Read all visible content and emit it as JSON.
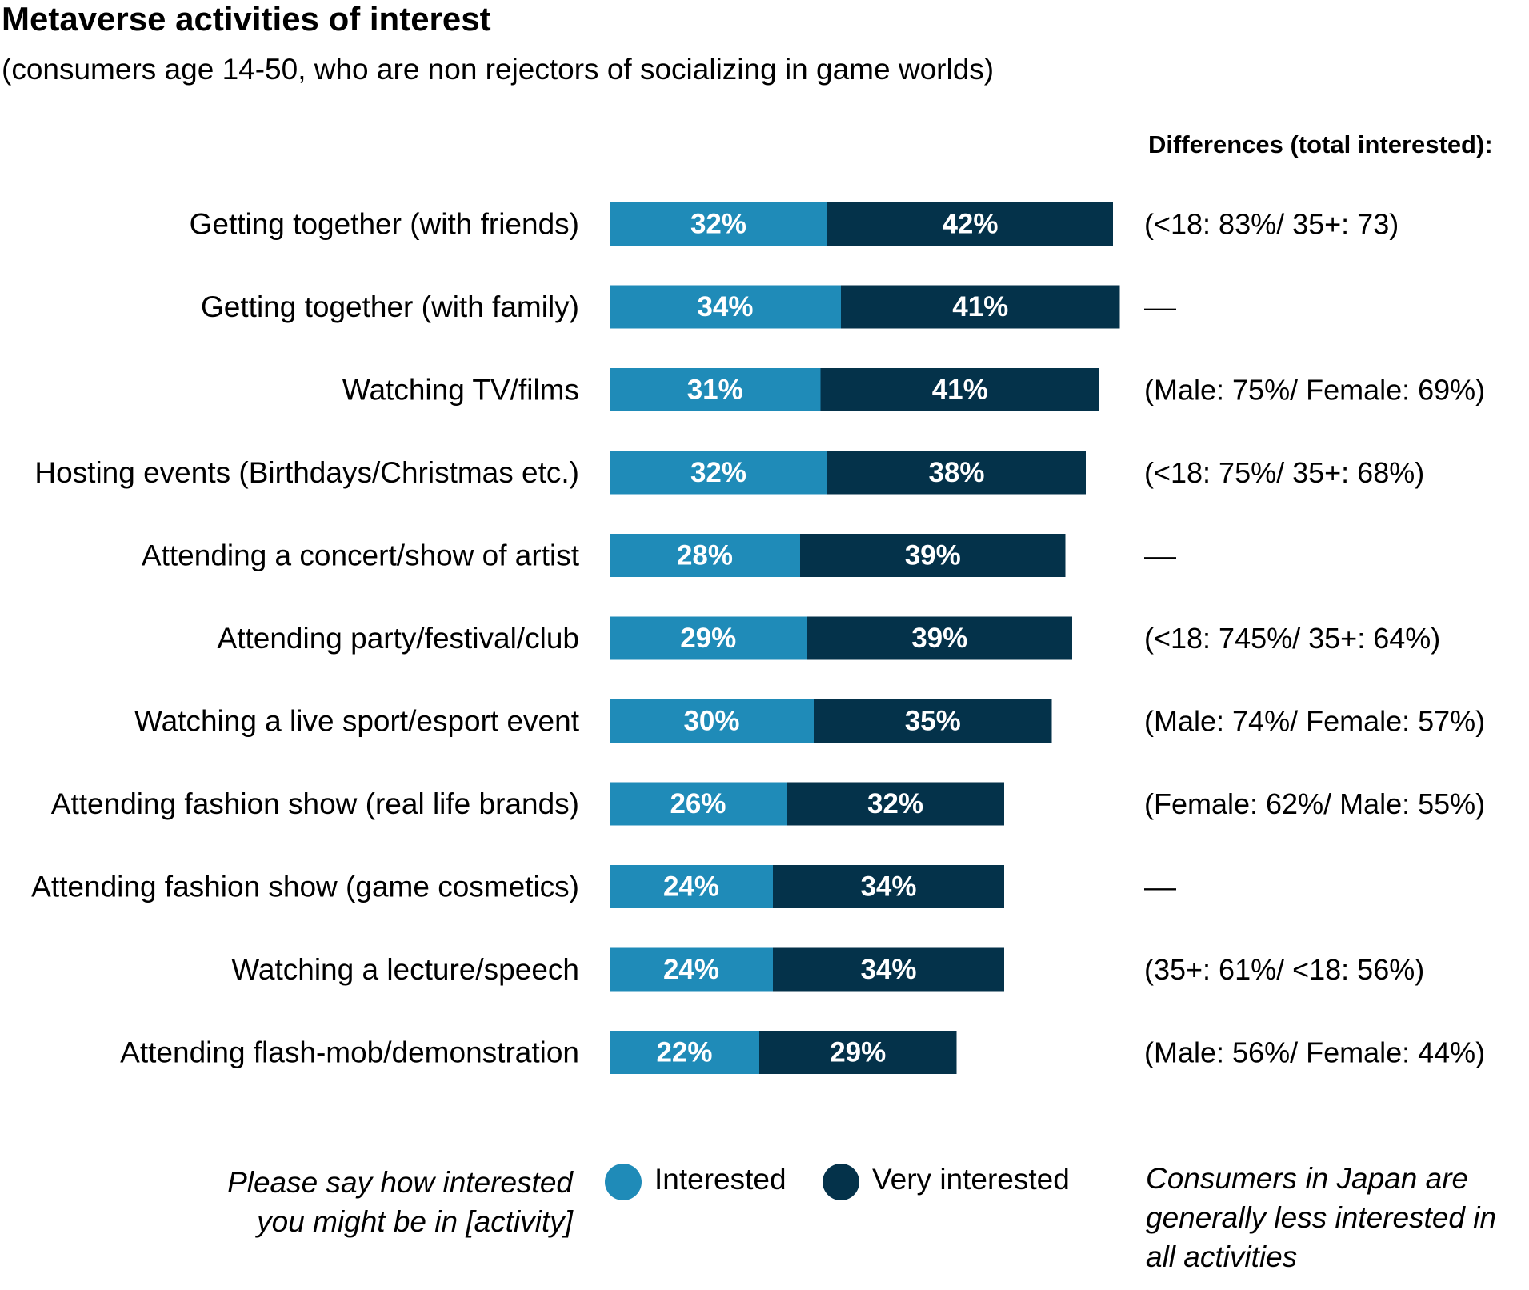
{
  "title": "Metaverse activities of interest",
  "subtitle": "(consumers age 14-50, who are non rejectors of socializing in game worlds)",
  "differences_header": "Differences (total interested):",
  "legend": {
    "question_line1": "Please say how interested",
    "question_line2": "you might be in [activity]",
    "interested_label": "Interested",
    "very_interested_label": "Very interested"
  },
  "footnote": {
    "line1": "Consumers in Japan are",
    "line2": "generally less interested in",
    "line3": "all activities"
  },
  "colors": {
    "interested": "#1f8bb8",
    "very_interested": "#04324a",
    "label_text": "#ffffff"
  },
  "chart_data": {
    "type": "bar",
    "orientation": "horizontal",
    "stacked": true,
    "unit": "%",
    "categories": [
      "Getting together (with friends)",
      "Getting together (with family)",
      "Watching TV/films",
      "Hosting events (Birthdays/Christmas etc.)",
      "Attending a concert/show of artist",
      "Attending party/festival/club",
      "Watching a live sport/esport event",
      "Attending fashion show (real life brands)",
      "Attending fashion show (game cosmetics)",
      "Watching a lecture/speech",
      "Attending flash-mob/demonstration"
    ],
    "series": [
      {
        "name": "Interested",
        "values": [
          32,
          34,
          31,
          32,
          28,
          29,
          30,
          26,
          24,
          24,
          22
        ]
      },
      {
        "name": "Very interested",
        "values": [
          42,
          41,
          41,
          38,
          39,
          39,
          35,
          32,
          34,
          34,
          29
        ]
      }
    ],
    "differences": [
      "(<18: 83%/ 35+: 73)",
      "––",
      "(Male: 75%/ Female: 69%)",
      "(<18: 75%/ 35+: 68%)",
      "––",
      "(<18: 745%/ 35+: 64%)",
      "(Male: 74%/ Female: 57%)",
      "(Female: 62%/ Male: 55%)",
      "––",
      "(35+: 61%/ <18: 56%)",
      "(Male: 56%/ Female: 44%)"
    ],
    "legend_position": "bottom",
    "grid": false
  }
}
